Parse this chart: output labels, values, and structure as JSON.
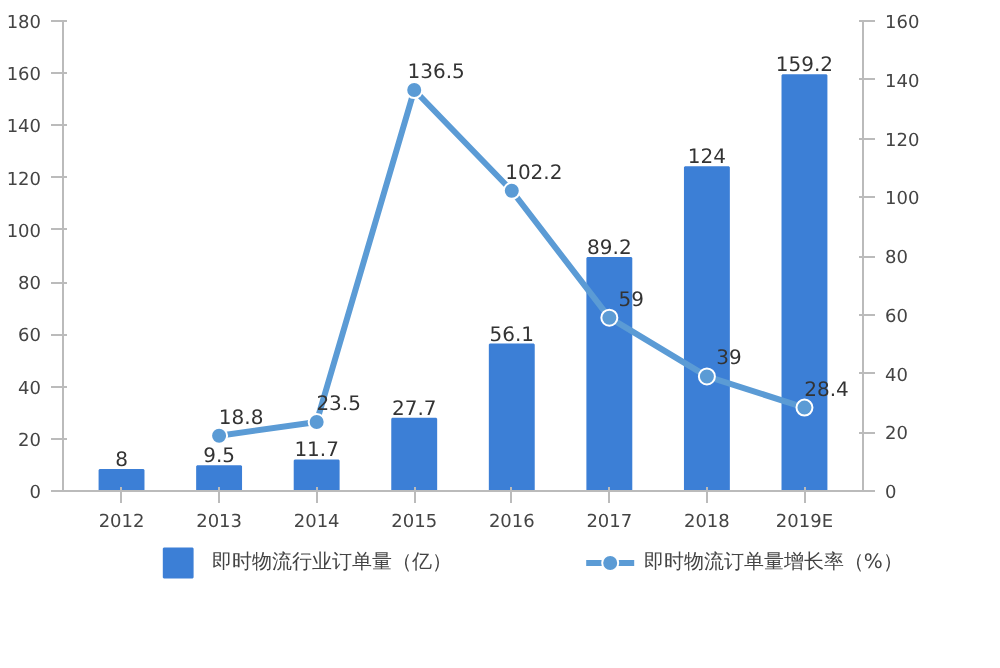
{
  "chart_data": {
    "type": "bar",
    "categories": [
      "2012",
      "2013",
      "2014",
      "2015",
      "2016",
      "2017",
      "2018",
      "2019E"
    ],
    "series": [
      {
        "name": "即时物流行业订单量（亿）",
        "color": "#3c7fd6",
        "values": [
          8,
          9.5,
          11.7,
          27.7,
          56.1,
          89.2,
          124,
          159.2
        ]
      },
      {
        "name": "即时物流订单量增长率（%）",
        "type": "line",
        "axis": "y2",
        "color": "#5b9bd5",
        "marker": "circle",
        "values": [
          null,
          18.8,
          23.5,
          136.5,
          102.2,
          59,
          39,
          28.4
        ]
      }
    ],
    "ylim": [
      0,
      180
    ],
    "yticks": [
      0,
      20,
      40,
      60,
      80,
      100,
      120,
      140,
      160,
      180
    ],
    "y2lim": [
      0,
      160
    ],
    "y2ticks": [
      0,
      20,
      40,
      60,
      80,
      100,
      120,
      140,
      160
    ],
    "data_labels": true,
    "legend": "bottom",
    "grid": false
  }
}
